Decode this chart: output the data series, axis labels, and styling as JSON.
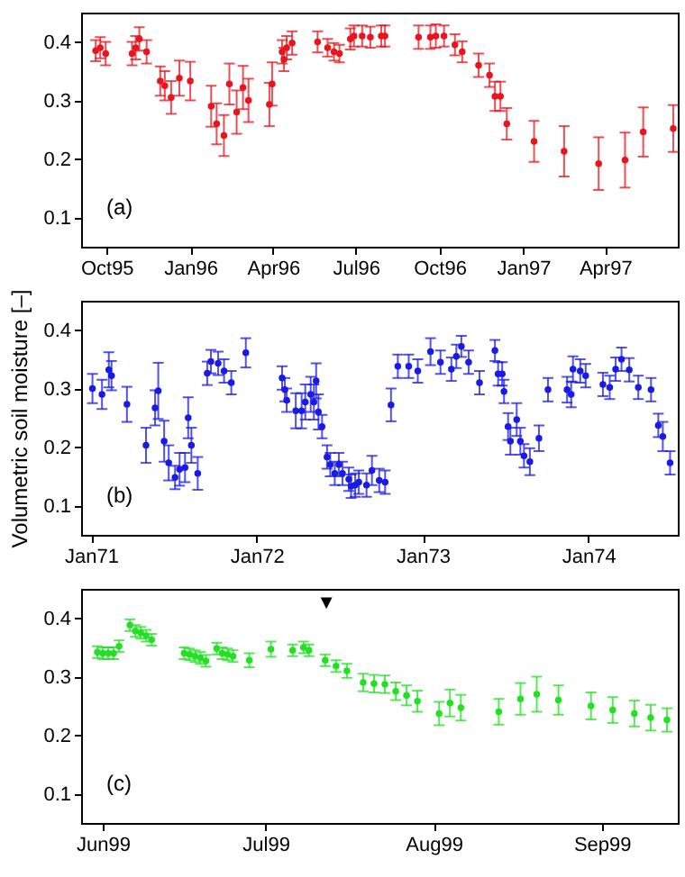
{
  "chart_data": [
    {
      "type": "scatter",
      "color": "#e8141e",
      "marker": "circle",
      "ylim": [
        0.05,
        0.45
      ],
      "yticks": [
        0.1,
        0.2,
        0.3,
        0.4
      ],
      "xlim": [
        "1995-09-03",
        "1997-06-20"
      ],
      "xticks": [
        {
          "value": "1995-10-01",
          "label": "Oct95"
        },
        {
          "value": "1996-01-01",
          "label": "Jan96"
        },
        {
          "value": "1996-04-01",
          "label": "Apr96"
        },
        {
          "value": "1996-07-01",
          "label": "Jul96"
        },
        {
          "value": "1996-10-01",
          "label": "Oct96"
        },
        {
          "value": "1997-01-01",
          "label": "Jan97"
        },
        {
          "value": "1997-04-01",
          "label": "Apr97"
        }
      ],
      "x": [
        "1995-09-19",
        "1995-09-24",
        "1995-09-30",
        "1995-10-29",
        "1995-11-02",
        "1995-11-06",
        "1995-11-14",
        "1995-11-29",
        "1995-12-04",
        "1995-12-11",
        "1995-12-20",
        "1996-01-01",
        "1996-01-24",
        "1996-01-30",
        "1996-02-07",
        "1996-02-13",
        "1996-02-21",
        "1996-02-28",
        "1996-03-05",
        "1996-03-28",
        "1996-03-31",
        "1996-04-11",
        "1996-04-13",
        "1996-04-16",
        "1996-04-22",
        "1996-05-20",
        "1996-05-31",
        "1996-06-07",
        "1996-06-13",
        "1996-06-25",
        "1996-06-29",
        "1996-07-08",
        "1996-07-17",
        "1996-07-29",
        "1996-08-02",
        "1996-09-08",
        "1996-09-21",
        "1996-09-27",
        "1996-10-06",
        "1996-10-18",
        "1996-10-26",
        "1996-11-13",
        "1996-11-25",
        "1996-12-01",
        "1996-12-07",
        "1996-12-14",
        "1997-01-13",
        "1997-02-15",
        "1997-03-25",
        "1997-04-23",
        "1997-05-13",
        "1997-06-15"
      ],
      "values": [
        0.385,
        0.39,
        0.38,
        0.38,
        0.39,
        0.405,
        0.383,
        0.333,
        0.325,
        0.305,
        0.338,
        0.333,
        0.29,
        0.26,
        0.24,
        0.328,
        0.28,
        0.322,
        0.3,
        0.293,
        0.328,
        0.383,
        0.37,
        0.39,
        0.398,
        0.4,
        0.39,
        0.383,
        0.38,
        0.405,
        0.41,
        0.41,
        0.408,
        0.41,
        0.41,
        0.408,
        0.408,
        0.41,
        0.41,
        0.395,
        0.383,
        0.36,
        0.343,
        0.307,
        0.307,
        0.26,
        0.23,
        0.213,
        0.192,
        0.198,
        0.246,
        0.252
      ],
      "errors": [
        0.018,
        0.018,
        0.02,
        0.02,
        0.02,
        0.02,
        0.02,
        0.025,
        0.025,
        0.028,
        0.03,
        0.033,
        0.035,
        0.035,
        0.035,
        0.035,
        0.037,
        0.037,
        0.037,
        0.037,
        0.037,
        0.02,
        0.02,
        0.02,
        0.02,
        0.018,
        0.015,
        0.015,
        0.015,
        0.018,
        0.018,
        0.018,
        0.018,
        0.018,
        0.018,
        0.02,
        0.02,
        0.02,
        0.018,
        0.018,
        0.018,
        0.02,
        0.02,
        0.025,
        0.025,
        0.027,
        0.035,
        0.043,
        0.045,
        0.047,
        0.042,
        0.04
      ],
      "annotations": [
        "(a)"
      ]
    },
    {
      "type": "scatter",
      "color": "#1a1ae6",
      "marker": "circle",
      "ylabel": "Volumetric soil moisture [–]",
      "ylim": [
        0.05,
        0.45
      ],
      "yticks": [
        0.1,
        0.2,
        0.3,
        0.4
      ],
      "xlim": [
        "1970-12-10",
        "1974-07-17"
      ],
      "xticks": [
        {
          "value": "1971-01-01",
          "label": "Jan71"
        },
        {
          "value": "1972-01-01",
          "label": "Jan72"
        },
        {
          "value": "1973-01-01",
          "label": "Jan73"
        },
        {
          "value": "1974-01-01",
          "label": "Jan74"
        }
      ],
      "x": [
        "1971-01-04",
        "1971-01-25",
        "1971-02-09",
        "1971-02-15",
        "1971-03-21",
        "1971-05-02",
        "1971-05-22",
        "1971-05-29",
        "1971-06-11",
        "1971-06-21",
        "1971-07-05",
        "1971-07-15",
        "1971-07-27",
        "1971-08-03",
        "1971-08-10",
        "1971-08-24",
        "1971-09-14",
        "1971-09-22",
        "1971-10-08",
        "1971-10-21",
        "1971-11-06",
        "1971-12-08",
        "1972-02-26",
        "1972-03-03",
        "1972-03-07",
        "1972-03-27",
        "1972-04-09",
        "1972-04-17",
        "1972-04-29",
        "1972-05-06",
        "1972-05-11",
        "1972-05-16",
        "1972-05-24",
        "1972-06-04",
        "1972-06-11",
        "1972-06-21",
        "1972-06-30",
        "1972-07-08",
        "1972-07-22",
        "1972-07-27",
        "1972-08-05",
        "1972-08-13",
        "1972-08-30",
        "1972-09-11",
        "1972-09-27",
        "1972-10-10",
        "1972-10-23",
        "1972-11-07",
        "1972-12-01",
        "1972-12-21",
        "1973-01-18",
        "1973-02-09",
        "1973-03-05",
        "1973-03-16",
        "1973-03-27",
        "1973-04-12",
        "1973-05-06",
        "1973-06-09",
        "1973-06-16",
        "1973-06-25",
        "1973-06-29",
        "1973-07-08",
        "1973-07-13",
        "1973-07-27",
        "1973-08-04",
        "1973-08-12",
        "1973-08-25",
        "1973-09-14",
        "1973-10-04",
        "1973-11-15",
        "1973-11-24",
        "1973-11-28",
        "1973-12-14",
        "1973-12-26",
        "1974-02-02",
        "1974-02-17",
        "1974-03-02",
        "1974-03-15",
        "1974-04-01",
        "1974-04-21",
        "1974-05-19",
        "1974-06-04",
        "1974-06-14",
        "1974-06-30"
      ],
      "values": [
        0.3,
        0.29,
        0.332,
        0.322,
        0.273,
        0.203,
        0.267,
        0.296,
        0.21,
        0.173,
        0.148,
        0.162,
        0.165,
        0.25,
        0.203,
        0.155,
        0.326,
        0.346,
        0.343,
        0.33,
        0.31,
        0.361,
        0.318,
        0.298,
        0.28,
        0.262,
        0.262,
        0.277,
        0.29,
        0.277,
        0.313,
        0.26,
        0.235,
        0.183,
        0.17,
        0.155,
        0.17,
        0.155,
        0.145,
        0.133,
        0.135,
        0.14,
        0.135,
        0.16,
        0.143,
        0.14,
        0.272,
        0.338,
        0.338,
        0.33,
        0.363,
        0.345,
        0.333,
        0.355,
        0.372,
        0.345,
        0.31,
        0.365,
        0.325,
        0.325,
        0.295,
        0.235,
        0.21,
        0.247,
        0.21,
        0.185,
        0.175,
        0.215,
        0.298,
        0.298,
        0.29,
        0.333,
        0.33,
        0.322,
        0.307,
        0.302,
        0.333,
        0.35,
        0.332,
        0.302,
        0.298,
        0.237,
        0.218,
        0.173
      ],
      "errors": [
        0.025,
        0.025,
        0.03,
        0.025,
        0.03,
        0.03,
        0.03,
        0.048,
        0.035,
        0.03,
        0.02,
        0.028,
        0.025,
        0.035,
        0.03,
        0.028,
        0.02,
        0.02,
        0.02,
        0.02,
        0.02,
        0.025,
        0.02,
        0.02,
        0.02,
        0.03,
        0.03,
        0.03,
        0.03,
        0.03,
        0.03,
        0.03,
        0.02,
        0.02,
        0.02,
        0.02,
        0.02,
        0.02,
        0.02,
        0.02,
        0.02,
        0.02,
        0.02,
        0.025,
        0.02,
        0.02,
        0.028,
        0.02,
        0.02,
        0.02,
        0.023,
        0.02,
        0.02,
        0.02,
        0.018,
        0.02,
        0.02,
        0.018,
        0.02,
        0.02,
        0.02,
        0.023,
        0.023,
        0.028,
        0.023,
        0.02,
        0.023,
        0.022,
        0.02,
        0.022,
        0.022,
        0.022,
        0.02,
        0.02,
        0.02,
        0.02,
        0.02,
        0.02,
        0.02,
        0.02,
        0.02,
        0.02,
        0.025,
        0.02
      ],
      "annotations": [
        "(b)"
      ]
    },
    {
      "type": "scatter",
      "color": "#22e022",
      "marker": "circle",
      "ylim": [
        0.05,
        0.45
      ],
      "yticks": [
        0.1,
        0.2,
        0.3,
        0.4
      ],
      "xlim": [
        "1999-05-28",
        "1999-09-15"
      ],
      "xticks": [
        {
          "value": "1999-06-01",
          "label": "Jun99"
        },
        {
          "value": "1999-07-01",
          "label": "Jul99"
        },
        {
          "value": "1999-08-01",
          "label": "Aug99"
        },
        {
          "value": "1999-09-01",
          "label": "Sep99"
        }
      ],
      "x": [
        "1999-05-31",
        "1999-06-01",
        "1999-06-02",
        "1999-06-03",
        "1999-06-04",
        "1999-06-06",
        "1999-06-07",
        "1999-06-08",
        "1999-06-09",
        "1999-06-10",
        "1999-06-16",
        "1999-06-17",
        "1999-06-18",
        "1999-06-19",
        "1999-06-20",
        "1999-06-22",
        "1999-06-23",
        "1999-06-24",
        "1999-06-25",
        "1999-06-28",
        "1999-07-02",
        "1999-07-06",
        "1999-07-08",
        "1999-07-09",
        "1999-07-12",
        "1999-07-14",
        "1999-07-16",
        "1999-07-19",
        "1999-07-21",
        "1999-07-23",
        "1999-07-25",
        "1999-07-27",
        "1999-07-29",
        "1999-08-02",
        "1999-08-04",
        "1999-08-06",
        "1999-08-13",
        "1999-08-17",
        "1999-08-20",
        "1999-08-24",
        "1999-08-30",
        "1999-09-03",
        "1999-09-07",
        "1999-09-10",
        "1999-09-13"
      ],
      "values": [
        0.342,
        0.34,
        0.34,
        0.34,
        0.352,
        0.388,
        0.378,
        0.375,
        0.37,
        0.363,
        0.34,
        0.338,
        0.335,
        0.332,
        0.327,
        0.348,
        0.34,
        0.338,
        0.335,
        0.328,
        0.347,
        0.345,
        0.35,
        0.345,
        0.328,
        0.318,
        0.31,
        0.29,
        0.288,
        0.287,
        0.275,
        0.268,
        0.258,
        0.237,
        0.255,
        0.247,
        0.24,
        0.262,
        0.27,
        0.26,
        0.25,
        0.243,
        0.237,
        0.23,
        0.226
      ],
      "errors": [
        0.01,
        0.01,
        0.01,
        0.01,
        0.01,
        0.01,
        0.01,
        0.01,
        0.01,
        0.01,
        0.01,
        0.01,
        0.01,
        0.01,
        0.01,
        0.01,
        0.01,
        0.01,
        0.01,
        0.012,
        0.013,
        0.01,
        0.01,
        0.01,
        0.01,
        0.01,
        0.012,
        0.015,
        0.015,
        0.015,
        0.015,
        0.017,
        0.018,
        0.02,
        0.023,
        0.022,
        0.022,
        0.027,
        0.03,
        0.025,
        0.023,
        0.022,
        0.022,
        0.022,
        0.02
      ],
      "annotations": [
        "(c)",
        "▼"
      ]
    }
  ]
}
